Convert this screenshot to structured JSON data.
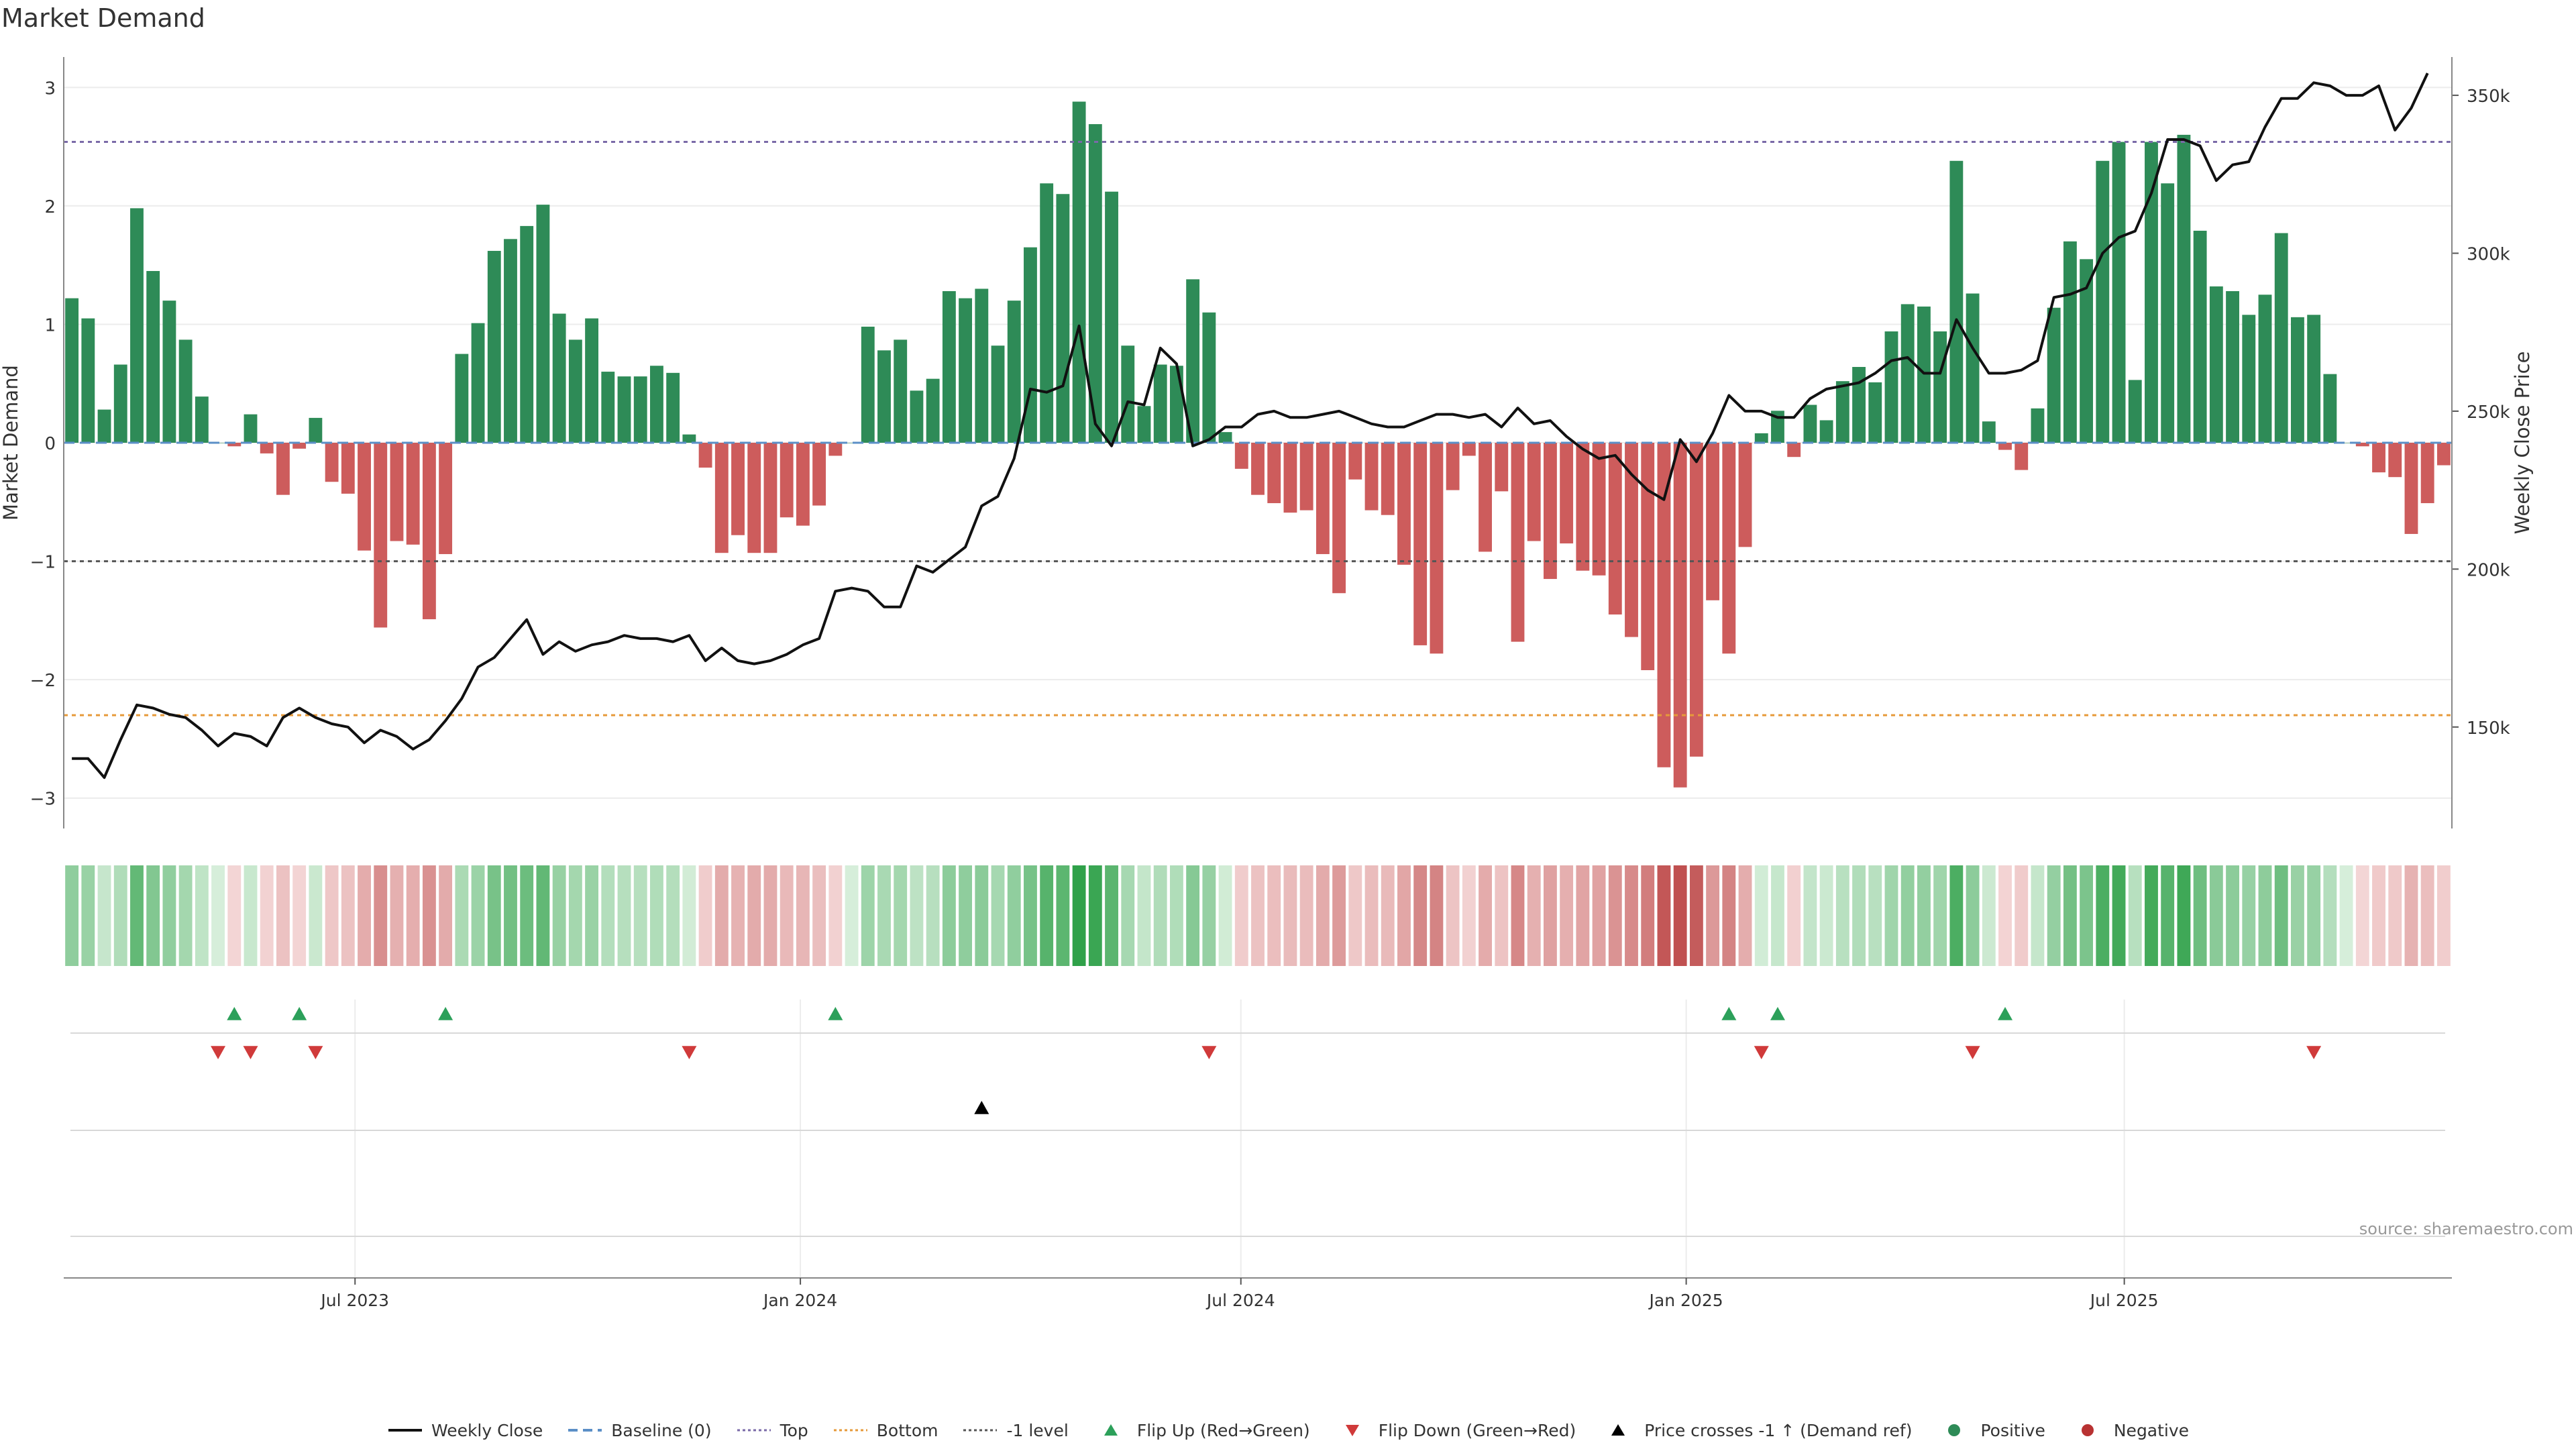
{
  "chart_data": {
    "type": "bar",
    "title": "Market Demand",
    "ylabel": "Market Demand",
    "ylabel_right": "Weekly Close Price",
    "ylim": [
      -3.2,
      3.2
    ],
    "yticks": [
      3,
      2,
      1,
      0,
      -1,
      -2,
      -3
    ],
    "ytick_labels": [
      "3",
      "2",
      "1",
      "0",
      "−1",
      "−2",
      "−3"
    ],
    "y2lim": [
      120000,
      360000
    ],
    "y2ticks": [
      150000,
      200000,
      250000,
      300000,
      350000
    ],
    "y2tick_labels": [
      "150k",
      "200k",
      "250k",
      "300k",
      "350k"
    ],
    "x_start": "2023-03-06",
    "x_end": "2025-11-10",
    "xticks": [
      "2023-07-01",
      "2024-01-01",
      "2024-07-01",
      "2025-01-01",
      "2025-07-01"
    ],
    "xtick_labels": [
      "Jul 2023",
      "Jan 2024",
      "Jul 2024",
      "Jan 2025",
      "Jul 2025"
    ],
    "reference_lines": {
      "top": 2.54,
      "bottom": -2.3,
      "minus_one": -1,
      "baseline": 0
    },
    "demand": [
      1.22,
      1.05,
      0.28,
      0.66,
      1.98,
      1.45,
      1.2,
      0.87,
      0.39,
      0,
      -0.03,
      0.24,
      -0.09,
      -0.44,
      -0.05,
      0.21,
      -0.33,
      -0.43,
      -0.91,
      -1.56,
      -0.83,
      -0.86,
      -1.49,
      -0.94,
      0.75,
      1.01,
      1.62,
      1.72,
      1.83,
      2.01,
      1.09,
      0.87,
      1.05,
      0.6,
      0.56,
      0.56,
      0.65,
      0.59,
      0.07,
      -0.21,
      -0.93,
      -0.78,
      -0.93,
      -0.93,
      -0.63,
      -0.7,
      -0.53,
      -0.11,
      0,
      0.98,
      0.78,
      0.87,
      0.44,
      0.54,
      1.28,
      1.22,
      1.3,
      0.82,
      1.2,
      1.65,
      2.19,
      2.1,
      2.88,
      2.69,
      2.12,
      0.82,
      0.31,
      0.66,
      0.65,
      1.38,
      1.1,
      0.09,
      -0.22,
      -0.44,
      -0.51,
      -0.59,
      -0.57,
      -0.94,
      -1.27,
      -0.31,
      -0.57,
      -0.61,
      -1.03,
      -1.71,
      -1.78,
      -0.4,
      -0.11,
      -0.92,
      -0.41,
      -1.68,
      -0.83,
      -1.15,
      -0.85,
      -1.08,
      -1.12,
      -1.45,
      -1.64,
      -1.92,
      -2.74,
      -2.91,
      -2.65,
      -1.33,
      -1.78,
      -0.88,
      0.08,
      0.27,
      -0.12,
      0.32,
      0.19,
      0.52,
      0.64,
      0.51,
      0.94,
      1.17,
      1.15,
      0.94,
      2.38,
      1.26,
      0.18,
      -0.06,
      -0.23,
      0.29,
      1.14,
      1.7,
      1.55,
      2.38,
      2.54,
      0.53,
      2.54,
      2.19,
      2.6,
      1.79,
      1.32,
      1.28,
      1.08,
      1.25,
      1.77,
      1.06,
      1.08,
      0.58,
      0,
      -0.03,
      -0.25,
      -0.29,
      -0.77,
      -0.51,
      -0.19
    ],
    "price": [
      140000,
      140000,
      134000,
      146000,
      157000,
      156000,
      154000,
      153000,
      149000,
      144000,
      148000,
      147000,
      144000,
      153000,
      156000,
      153000,
      151000,
      150000,
      145000,
      149000,
      147000,
      143000,
      146000,
      152000,
      159000,
      169000,
      172000,
      178000,
      184000,
      173000,
      177000,
      174000,
      176000,
      177000,
      179000,
      178000,
      178000,
      177000,
      179000,
      171000,
      175000,
      171000,
      170000,
      171000,
      173000,
      176000,
      178000,
      193000,
      194000,
      193000,
      188000,
      188000,
      201000,
      199000,
      203000,
      207000,
      220000,
      223000,
      235000,
      257000,
      256000,
      258000,
      277000,
      246000,
      239000,
      253000,
      252000,
      270000,
      265000,
      239000,
      241000,
      245000,
      245000,
      249000,
      250000,
      248000,
      248000,
      249000,
      250000,
      248000,
      246000,
      245000,
      245000,
      247000,
      249000,
      249000,
      248000,
      249000,
      245000,
      251000,
      246000,
      247000,
      242000,
      238000,
      235000,
      236000,
      230000,
      225000,
      222000,
      241000,
      234000,
      243000,
      255000,
      250000,
      250000,
      248000,
      248000,
      254000,
      257000,
      258000,
      259000,
      262000,
      266000,
      267000,
      262000,
      262000,
      279000,
      270000,
      262000,
      262000,
      263000,
      266000,
      286000,
      287000,
      289000,
      300000,
      305000,
      307000,
      319000,
      336000,
      336000,
      334000,
      323000,
      328000,
      329000,
      340000,
      349000,
      349000,
      354000,
      353000,
      350000,
      350000,
      353000,
      339000,
      346000,
      357000
    ],
    "flip_up_indices": [
      10,
      14,
      23,
      47,
      102,
      105,
      119
    ],
    "flip_down_indices": [
      9,
      11,
      15,
      38,
      70,
      104,
      117,
      138
    ],
    "price_cross_indices": [
      56
    ],
    "heat_strip_values_from": "demand"
  },
  "legend": [
    {
      "label": "Weekly Close",
      "icon": "solid-line",
      "color": "#111111"
    },
    {
      "label": "Baseline (0)",
      "icon": "dashed-line",
      "color": "#5b8fc7"
    },
    {
      "label": "Top",
      "icon": "dotted-line",
      "color": "#7a6aa8"
    },
    {
      "label": "Bottom",
      "icon": "dotted-line",
      "color": "#e69a3a"
    },
    {
      "label": "-1 level",
      "icon": "dotted-line",
      "color": "#555555"
    },
    {
      "label": "Flip Up (Red→Green)",
      "icon": "triangle-up-icon",
      "color": "#2ca05a"
    },
    {
      "label": "Flip Down (Green→Red)",
      "icon": "triangle-down-icon",
      "color": "#d03a3a"
    },
    {
      "label": "Price crosses -1 ↑ (Demand ref)",
      "icon": "triangle-up-icon",
      "color": "#000000"
    },
    {
      "label": "Positive",
      "icon": "circle-icon",
      "color": "#2e8b57"
    },
    {
      "label": "Negative",
      "icon": "circle-icon",
      "color": "#b83232"
    }
  ],
  "source": "source: sharemaestro.com",
  "colors": {
    "positive_bar": "#2e8b57",
    "negative_bar": "#cd5c5c",
    "price_line": "#111111",
    "grid": "#ececec"
  }
}
